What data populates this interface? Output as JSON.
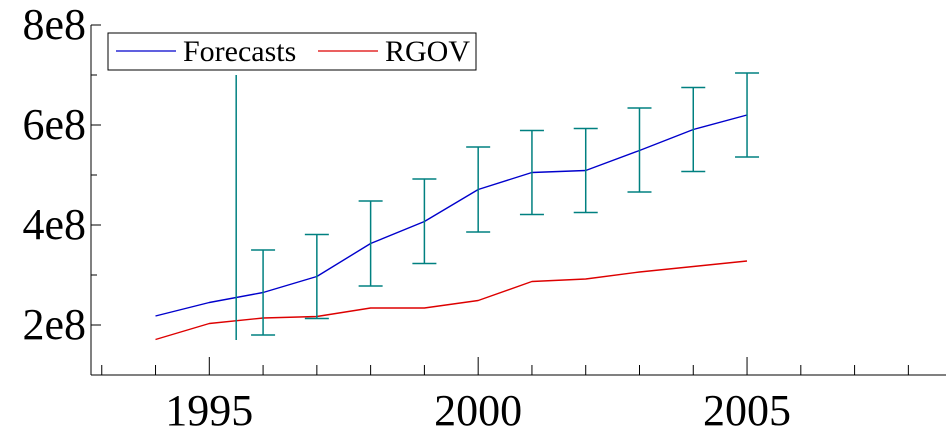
{
  "chart_data": {
    "type": "line",
    "x": [
      1994,
      1995,
      1996,
      1997,
      1998,
      1999,
      2000,
      2001,
      2002,
      2003,
      2004,
      2005
    ],
    "xlim": [
      1992.8,
      2008.7
    ],
    "ylim": [
      100000000,
      800000000
    ],
    "x_ticks": [
      1995,
      2000,
      2005
    ],
    "x_tick_labels": [
      "1995",
      "2000",
      "2005"
    ],
    "y_ticks": [
      200000000,
      400000000,
      600000000,
      800000000
    ],
    "y_tick_labels": [
      "2e8",
      "4e8",
      "6e8",
      "8e8"
    ],
    "grid": false,
    "legend_position": "top-left",
    "series": [
      {
        "name": "Forecasts",
        "color": "#0000cc",
        "values": [
          218000000,
          245000000,
          265000000,
          297000000,
          363000000,
          407000000,
          471000000,
          505000000,
          509000000,
          549000000,
          591000000,
          620000000
        ]
      },
      {
        "name": "RGOV",
        "color": "#dd0000",
        "values": [
          171000000,
          203000000,
          214000000,
          217000000,
          234000000,
          234000000,
          249000000,
          287000000,
          292000000,
          306000000,
          317000000,
          328000000
        ]
      }
    ],
    "error_bars": {
      "color": "#008080",
      "bars": [
        {
          "x": 1995.5,
          "low": 170000000,
          "high": 700000000,
          "caps": false
        },
        {
          "x": 1996,
          "low": 180000000,
          "high": 350000000,
          "caps": true
        },
        {
          "x": 1997,
          "low": 213000000,
          "high": 381000000,
          "caps": true
        },
        {
          "x": 1998,
          "low": 278000000,
          "high": 448000000,
          "caps": true
        },
        {
          "x": 1999,
          "low": 323000000,
          "high": 492000000,
          "caps": true
        },
        {
          "x": 2000,
          "low": 386000000,
          "high": 556000000,
          "caps": true
        },
        {
          "x": 2001,
          "low": 421000000,
          "high": 589000000,
          "caps": true
        },
        {
          "x": 2002,
          "low": 425000000,
          "high": 593000000,
          "caps": true
        },
        {
          "x": 2003,
          "low": 466000000,
          "high": 634000000,
          "caps": true
        },
        {
          "x": 2004,
          "low": 507000000,
          "high": 675000000,
          "caps": true
        },
        {
          "x": 2005,
          "low": 536000000,
          "high": 704000000,
          "caps": true
        }
      ]
    }
  }
}
